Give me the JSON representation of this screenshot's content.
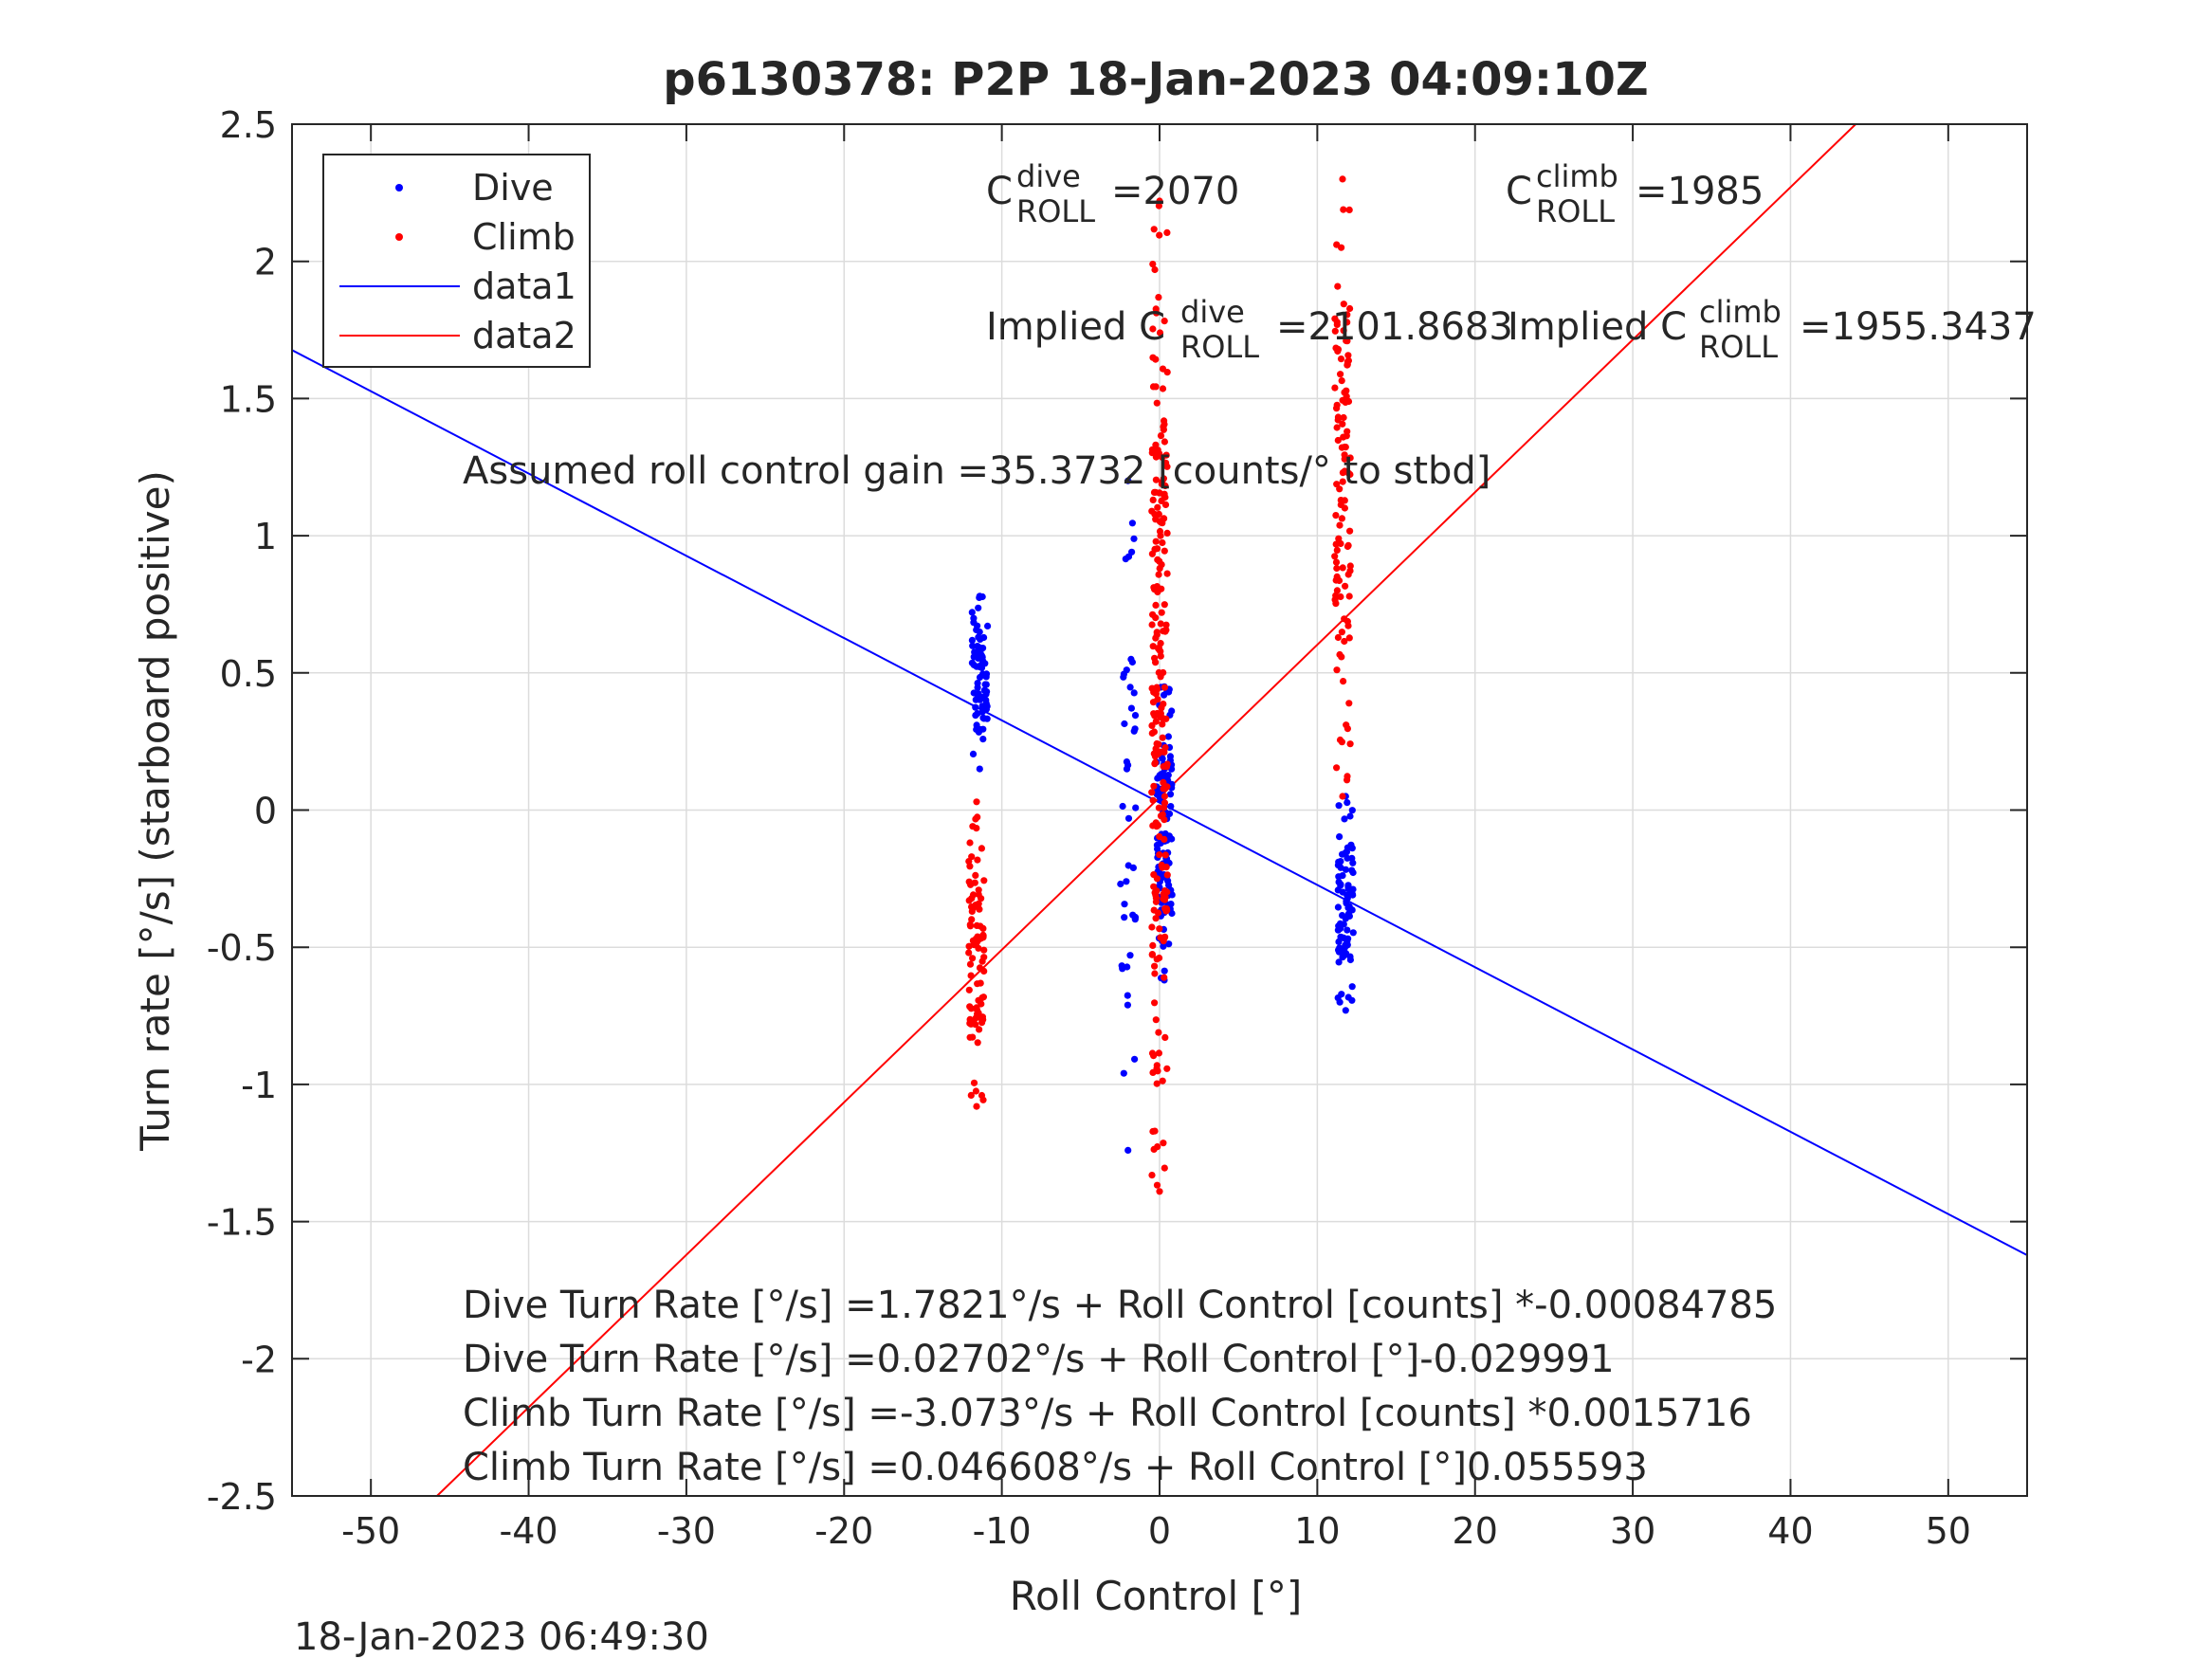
{
  "chart_data": {
    "type": "scatter",
    "title": "p6130378: P2P 18-Jan-2023 04:09:10Z",
    "xlabel": "Roll Control [°]",
    "ylabel": "Turn rate [°/s] (starboard positive)",
    "xlim": [
      -55,
      55
    ],
    "ylim": [
      -2.5,
      2.5
    ],
    "xticks": [
      -50,
      -40,
      -30,
      -20,
      -10,
      0,
      10,
      20,
      30,
      40,
      50
    ],
    "xtick_labels": [
      "-50",
      "-40",
      "-30",
      "-20",
      "-10",
      "0",
      "10",
      "20",
      "30",
      "40",
      "50"
    ],
    "yticks": [
      2.5,
      2,
      1.5,
      1,
      0.5,
      0,
      -0.5,
      -1,
      -1.5,
      -2,
      -2.5
    ],
    "ytick_labels": [
      "2.5",
      "2",
      "1.5",
      "1",
      "0.5",
      "0",
      "-0.5",
      "-1",
      "-1.5",
      "-2",
      "-2.5"
    ],
    "grid": true,
    "legend_position": "top-left",
    "timestamp": "18-Jan-2023 06:49:30",
    "legend": [
      {
        "label": "Dive",
        "kind": "marker",
        "color": "#0000ff"
      },
      {
        "label": "Climb",
        "kind": "marker",
        "color": "#ff0000"
      },
      {
        "label": "data1",
        "kind": "line",
        "color": "#0000ff"
      },
      {
        "label": "data2",
        "kind": "line",
        "color": "#ff0000"
      }
    ],
    "fit_lines": [
      {
        "name": "data1",
        "color": "#0000ff",
        "intercept": 0.02702,
        "slope": -0.029991
      },
      {
        "name": "data2",
        "color": "#ff0000",
        "intercept": 0.046608,
        "slope": 0.055593
      }
    ],
    "marker_groups": [
      {
        "series": "Dive",
        "color": "#0000ff",
        "x_center": -11.4,
        "y_min": 0.15,
        "y_max": 0.78,
        "count": 80
      },
      {
        "series": "Dive",
        "color": "#0000ff",
        "x_center": 0.3,
        "y_min": -0.62,
        "y_max": 0.45,
        "count": 120
      },
      {
        "series": "Dive",
        "color": "#0000ff",
        "x_center": -2.0,
        "y_min": -1.24,
        "y_max": 1.2,
        "count": 40
      },
      {
        "series": "Dive",
        "color": "#0000ff",
        "x_center": 11.8,
        "y_min": -0.73,
        "y_max": 0.05,
        "count": 85
      },
      {
        "series": "Climb",
        "color": "#ff0000",
        "x_center": -11.6,
        "y_min": -1.08,
        "y_max": 0.03,
        "count": 90
      },
      {
        "series": "Climb",
        "color": "#ff0000",
        "x_center": 0.0,
        "y_min": -1.39,
        "y_max": 2.22,
        "count": 230
      },
      {
        "series": "Climb",
        "color": "#ff0000",
        "x_center": 11.6,
        "y_min": 0.05,
        "y_max": 2.3,
        "count": 110
      }
    ],
    "annotations": {
      "c_dive_base": "C",
      "c_dive_sup": "dive",
      "c_dive_sub": "ROLL",
      "c_dive_value": "=2070",
      "c_climb_base": "C",
      "c_climb_sup": "climb",
      "c_climb_sub": "ROLL",
      "c_climb_value": "=1985",
      "implied_dive_prefix": "Implied C",
      "implied_dive_sup": "dive",
      "implied_dive_sub": "ROLL",
      "implied_dive_value": "=2101.8683",
      "implied_climb_prefix": "Implied C",
      "implied_climb_sup": "climb",
      "implied_climb_sub": "ROLL",
      "implied_climb_value": "=1955.3437",
      "gain": "Assumed roll control gain =35.3732 [counts/° to stbd]",
      "eq1": "Dive Turn Rate [°/s] =1.7821°/s + Roll Control [counts] *-0.00084785",
      "eq2": "Dive Turn Rate [°/s] =0.02702°/s + Roll Control [°]-0.029991",
      "eq3": "Climb Turn Rate [°/s] =-3.073°/s + Roll Control [counts] *0.0015716",
      "eq4": "Climb Turn Rate [°/s] =0.046608°/s + Roll Control [°]0.055593"
    }
  }
}
